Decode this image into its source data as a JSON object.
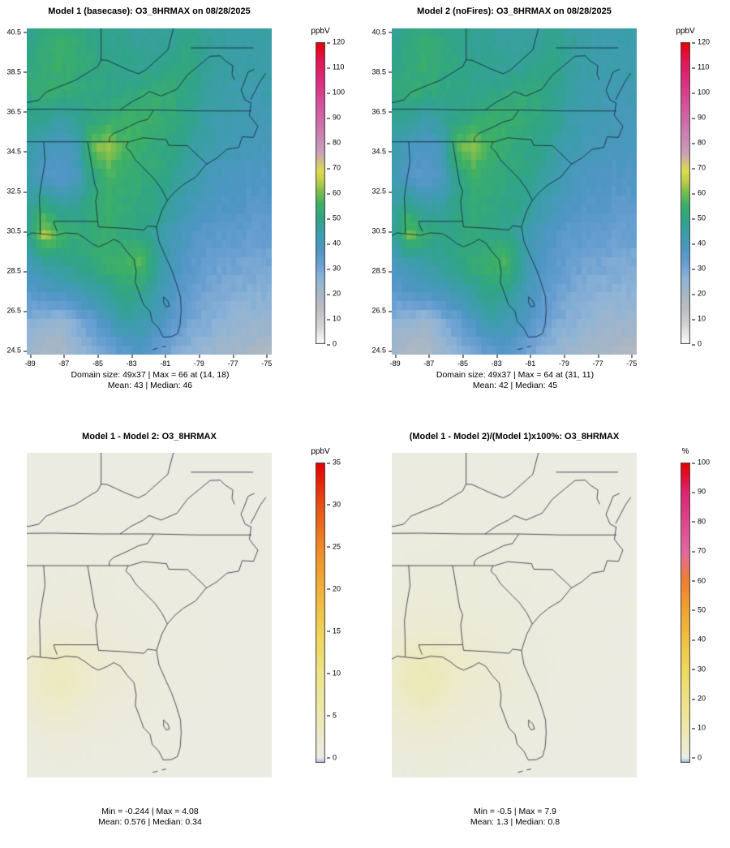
{
  "axes": {
    "x_ticks": [
      -89,
      -87,
      -85,
      -83,
      -81,
      -79,
      -77,
      -75
    ],
    "y_ticks": [
      40.5,
      38.5,
      36.5,
      34.5,
      32.5,
      30.5,
      28.5,
      26.5,
      24.5
    ]
  },
  "chart_data": [
    {
      "type": "heatmap",
      "title": "Model 1 (basecase): O3_8HRMAX on 08/28/2025",
      "units": "ppbV",
      "show_axes": true,
      "x_range": [
        -89.2,
        -74.7
      ],
      "y_range": [
        24.3,
        40.7
      ],
      "grid_cols": 49,
      "grid_rows": 37,
      "colorbar": {
        "label": "ppbV",
        "bar_range": [
          0,
          120
        ],
        "ticks": [
          0,
          10,
          20,
          30,
          40,
          50,
          60,
          70,
          80,
          90,
          100,
          110,
          120
        ]
      },
      "color_stops": [
        [
          0,
          "#FDFDFD"
        ],
        [
          8,
          "#D2D2D2"
        ],
        [
          14,
          "#BCBEC2"
        ],
        [
          20,
          "#A9B6C4"
        ],
        [
          26,
          "#8FB4D6"
        ],
        [
          32,
          "#699FD2"
        ],
        [
          38,
          "#4E96C4"
        ],
        [
          44,
          "#3D9DAC"
        ],
        [
          50,
          "#30A487"
        ],
        [
          56,
          "#3FB163"
        ],
        [
          61,
          "#7FBE4F"
        ],
        [
          65,
          "#C1CE48"
        ],
        [
          69,
          "#DCDC4E"
        ],
        [
          76,
          "#C9A2B8"
        ],
        [
          85,
          "#CC7BB0"
        ],
        [
          95,
          "#D3539E"
        ],
        [
          105,
          "#DB2C7E"
        ],
        [
          113,
          "#E01650"
        ],
        [
          120,
          "#E60000"
        ]
      ],
      "values": [
        [
          49,
          51,
          53,
          52,
          50,
          49,
          48,
          47,
          47,
          48,
          50,
          48,
          46,
          45,
          45,
          46
        ],
        [
          51,
          53,
          55,
          53,
          51,
          50,
          49,
          48,
          48,
          50,
          51,
          48,
          46,
          45,
          44,
          45
        ],
        [
          52,
          54,
          53,
          52,
          51,
          50,
          50,
          52,
          53,
          53,
          50,
          47,
          45,
          44,
          43,
          44
        ],
        [
          50,
          48,
          46,
          48,
          51,
          53,
          55,
          56,
          54,
          52,
          49,
          46,
          44,
          43,
          42,
          42
        ],
        [
          45,
          41,
          38,
          42,
          60,
          63,
          56,
          54,
          52,
          50,
          47,
          44,
          42,
          41,
          40,
          40
        ],
        [
          43,
          38,
          36,
          40,
          50,
          56,
          54,
          52,
          51,
          49,
          45,
          42,
          40,
          39,
          38,
          38
        ],
        [
          47,
          52,
          46,
          48,
          52,
          54,
          52,
          51,
          50,
          46,
          42,
          39,
          38,
          37,
          36,
          36
        ],
        [
          50,
          64,
          56,
          52,
          53,
          54,
          52,
          50,
          46,
          42,
          38,
          36,
          35,
          34,
          33,
          33
        ],
        [
          42,
          46,
          48,
          50,
          52,
          55,
          56,
          58,
          48,
          40,
          36,
          33,
          32,
          31,
          30,
          30
        ],
        [
          36,
          38,
          40,
          42,
          45,
          48,
          52,
          50,
          44,
          38,
          34,
          31,
          29,
          28,
          28,
          27
        ],
        [
          28,
          26,
          25,
          29,
          34,
          40,
          46,
          44,
          40,
          35,
          31,
          28,
          26,
          25,
          24,
          24
        ],
        [
          22,
          20,
          20,
          24,
          28,
          32,
          36,
          38,
          34,
          30,
          27,
          24,
          23,
          22,
          21,
          20
        ]
      ],
      "stats": {
        "line1": "Domain size: 49x37 | Max = 66 at (14, 18)",
        "line2": "Mean: 43 | Median: 46"
      }
    },
    {
      "type": "heatmap",
      "title": "Model 2 (noFires): O3_8HRMAX on 08/28/2025",
      "units": "ppbV",
      "show_axes": true,
      "x_range": [
        -89.2,
        -74.7
      ],
      "y_range": [
        24.3,
        40.7
      ],
      "grid_cols": 49,
      "grid_rows": 37,
      "colorbar": {
        "label": "ppbV",
        "bar_range": [
          0,
          120
        ],
        "ticks": [
          0,
          10,
          20,
          30,
          40,
          50,
          60,
          70,
          80,
          90,
          100,
          110,
          120
        ]
      },
      "color_stops": [
        [
          0,
          "#FDFDFD"
        ],
        [
          8,
          "#D2D2D2"
        ],
        [
          14,
          "#BCBEC2"
        ],
        [
          20,
          "#A9B6C4"
        ],
        [
          26,
          "#8FB4D6"
        ],
        [
          32,
          "#699FD2"
        ],
        [
          38,
          "#4E96C4"
        ],
        [
          44,
          "#3D9DAC"
        ],
        [
          50,
          "#30A487"
        ],
        [
          56,
          "#3FB163"
        ],
        [
          61,
          "#7FBE4F"
        ],
        [
          65,
          "#C1CE48"
        ],
        [
          69,
          "#DCDC4E"
        ],
        [
          76,
          "#C9A2B8"
        ],
        [
          85,
          "#CC7BB0"
        ],
        [
          95,
          "#D3539E"
        ],
        [
          105,
          "#DB2C7E"
        ],
        [
          113,
          "#E01650"
        ],
        [
          120,
          "#E60000"
        ]
      ],
      "values": [
        [
          48,
          50,
          52,
          51,
          49,
          48,
          47,
          46,
          46,
          47,
          49,
          47,
          45,
          44,
          44,
          45
        ],
        [
          50,
          52,
          54,
          52,
          50,
          49,
          48,
          47,
          47,
          49,
          50,
          47,
          45,
          44,
          43,
          44
        ],
        [
          51,
          53,
          52,
          51,
          50,
          49,
          49,
          51,
          52,
          52,
          49,
          46,
          44,
          43,
          42,
          43
        ],
        [
          49,
          47,
          45,
          47,
          50,
          52,
          54,
          55,
          53,
          51,
          48,
          45,
          43,
          42,
          41,
          41
        ],
        [
          44,
          40,
          37,
          41,
          59,
          62,
          55,
          53,
          51,
          49,
          46,
          43,
          41,
          40,
          39,
          39
        ],
        [
          42,
          37,
          35,
          39,
          49,
          55,
          53,
          51,
          50,
          48,
          44,
          41,
          39,
          38,
          37,
          37
        ],
        [
          46,
          50,
          44,
          46,
          50,
          52,
          51,
          50,
          49,
          45,
          41,
          38,
          37,
          36,
          35,
          35
        ],
        [
          48,
          60,
          53,
          50,
          51,
          52,
          51,
          49,
          45,
          41,
          37,
          35,
          34,
          33,
          32,
          32
        ],
        [
          40,
          43,
          45,
          47,
          50,
          53,
          55,
          57,
          47,
          39,
          35,
          32,
          31,
          30,
          29,
          29
        ],
        [
          35,
          37,
          39,
          41,
          44,
          47,
          51,
          49,
          43,
          37,
          33,
          30,
          28,
          27,
          27,
          26
        ],
        [
          27,
          25,
          24,
          28,
          33,
          39,
          45,
          43,
          39,
          34,
          30,
          27,
          25,
          24,
          23,
          23
        ],
        [
          21,
          19,
          19,
          23,
          27,
          31,
          35,
          37,
          33,
          29,
          26,
          23,
          22,
          21,
          20,
          19
        ]
      ],
      "stats": {
        "line1": "Domain size: 49x37 | Max = 64 at (31, 11)",
        "line2": "Mean: 42 | Median: 45"
      }
    },
    {
      "type": "heatmap",
      "title": "Model 1 - Model 2: O3_8HRMAX",
      "units": "ppbV",
      "show_axes": false,
      "x_range": [
        -89.2,
        -74.7
      ],
      "y_range": [
        24.3,
        40.7
      ],
      "grid_cols": 49,
      "grid_rows": 37,
      "colorbar": {
        "label": "ppbV",
        "bar_range": [
          -0.6,
          35
        ],
        "ticks": [
          0,
          5,
          10,
          15,
          20,
          25,
          30,
          35
        ]
      },
      "color_stops": [
        [
          -1,
          "#8FAEDC"
        ],
        [
          -0.15,
          "#CBD7EC"
        ],
        [
          0,
          "#EBEBE4"
        ],
        [
          2,
          "#ECEAD4"
        ],
        [
          5,
          "#EDE9B2"
        ],
        [
          10,
          "#EDE388"
        ],
        [
          15,
          "#EFD356"
        ],
        [
          20,
          "#F0B13C"
        ],
        [
          25,
          "#EE8A26"
        ],
        [
          30,
          "#E65014"
        ],
        [
          35,
          "#E60000"
        ]
      ],
      "values": [
        [
          0.3,
          0.3,
          0.3,
          0.3,
          0.3,
          0.3,
          0.3,
          0.3,
          0.2,
          0.2,
          0.2,
          0.2,
          0.2,
          0.2,
          0.2,
          0.2
        ],
        [
          0.3,
          0.3,
          0.4,
          0.4,
          0.4,
          0.3,
          0.3,
          0.3,
          0.3,
          0.3,
          0.2,
          0.2,
          0.2,
          0.2,
          0.2,
          0.2
        ],
        [
          0.4,
          0.4,
          0.5,
          0.5,
          0.5,
          0.4,
          0.4,
          0.4,
          0.3,
          0.3,
          0.3,
          0.3,
          0.2,
          0.2,
          0.2,
          0.2
        ],
        [
          0.5,
          0.5,
          0.6,
          0.6,
          0.6,
          0.6,
          0.5,
          0.5,
          0.4,
          0.4,
          0.3,
          0.3,
          0.3,
          0.3,
          0.2,
          0.2
        ],
        [
          0.6,
          0.7,
          0.8,
          0.8,
          0.8,
          0.8,
          0.7,
          0.6,
          0.5,
          0.5,
          0.4,
          0.4,
          0.3,
          0.3,
          0.3,
          0.3
        ],
        [
          0.8,
          1.0,
          1.1,
          1.1,
          1.0,
          0.9,
          0.8,
          0.7,
          0.6,
          0.5,
          0.5,
          0.4,
          0.4,
          0.3,
          0.3,
          0.3
        ],
        [
          1.2,
          1.6,
          1.8,
          1.7,
          1.5,
          1.2,
          1.0,
          0.9,
          0.7,
          0.6,
          0.5,
          0.5,
          0.4,
          0.4,
          0.3,
          0.3
        ],
        [
          2.2,
          3.2,
          3.6,
          3.1,
          2.5,
          2.0,
          1.6,
          1.1,
          0.8,
          0.7,
          0.6,
          0.5,
          0.4,
          0.4,
          0.3,
          0.3
        ],
        [
          2.6,
          3.6,
          4.0,
          3.3,
          2.3,
          1.9,
          1.6,
          1.3,
          0.9,
          0.7,
          0.5,
          0.4,
          0.4,
          0.3,
          0.3,
          0.3
        ],
        [
          1.6,
          2.2,
          2.6,
          2.1,
          1.6,
          1.3,
          1.1,
          0.9,
          0.7,
          0.5,
          0.4,
          0.4,
          0.3,
          0.3,
          0.2,
          0.2
        ],
        [
          0.9,
          1.1,
          1.3,
          1.1,
          0.9,
          0.8,
          0.7,
          0.6,
          0.5,
          0.4,
          0.3,
          0.3,
          0.2,
          0.2,
          0.2,
          0.2
        ],
        [
          0.5,
          0.6,
          0.7,
          0.6,
          0.5,
          0.5,
          0.4,
          0.4,
          0.3,
          0.3,
          0.2,
          0.2,
          0.2,
          0.2,
          0.2,
          0.2
        ]
      ],
      "stats": {
        "line1": "Min = -0.244 | Max = 4.08",
        "line2": "Mean: 0.576 |  Median: 0.34"
      }
    },
    {
      "type": "heatmap",
      "title": "(Model 1 - Model 2)/(Model 1)x100%: O3_8HRMAX",
      "units": "%",
      "show_axes": false,
      "x_range": [
        -89.2,
        -74.7
      ],
      "y_range": [
        24.3,
        40.7
      ],
      "grid_cols": 49,
      "grid_rows": 37,
      "colorbar": {
        "label": "%",
        "bar_range": [
          -1.7,
          100
        ],
        "ticks": [
          0,
          10,
          20,
          30,
          40,
          50,
          60,
          70,
          80,
          90,
          100
        ]
      },
      "color_stops": [
        [
          -2,
          "#8FAEDC"
        ],
        [
          -0.3,
          "#CBD7EC"
        ],
        [
          0,
          "#EBEBE4"
        ],
        [
          5,
          "#ECEAC9"
        ],
        [
          10,
          "#EDE8A9"
        ],
        [
          20,
          "#EDE288"
        ],
        [
          30,
          "#EFD85F"
        ],
        [
          40,
          "#F0C243"
        ],
        [
          50,
          "#F0A430"
        ],
        [
          60,
          "#EE8032"
        ],
        [
          70,
          "#E2689E"
        ],
        [
          80,
          "#DC4890"
        ],
        [
          90,
          "#DB246E"
        ],
        [
          100,
          "#E60000"
        ]
      ],
      "values": [
        [
          0.6,
          0.6,
          0.6,
          0.6,
          0.6,
          0.6,
          0.6,
          0.6,
          0.4,
          0.4,
          0.4,
          0.4,
          0.4,
          0.4,
          0.4,
          0.4
        ],
        [
          0.6,
          0.6,
          0.8,
          0.8,
          0.8,
          0.6,
          0.6,
          0.6,
          0.6,
          0.6,
          0.4,
          0.4,
          0.4,
          0.4,
          0.4,
          0.4
        ],
        [
          0.8,
          0.8,
          1.0,
          1.0,
          1.0,
          0.8,
          0.8,
          0.8,
          0.6,
          0.6,
          0.6,
          0.6,
          0.4,
          0.4,
          0.4,
          0.4
        ],
        [
          1.0,
          1.0,
          1.2,
          1.2,
          1.2,
          1.2,
          1.0,
          1.0,
          0.8,
          0.8,
          0.6,
          0.6,
          0.6,
          0.6,
          0.4,
          0.4
        ],
        [
          1.2,
          1.4,
          1.6,
          1.6,
          1.6,
          1.6,
          1.4,
          1.2,
          1.0,
          1.0,
          0.8,
          0.8,
          0.6,
          0.6,
          0.6,
          0.6
        ],
        [
          1.6,
          2.0,
          2.2,
          2.2,
          2.0,
          1.8,
          1.6,
          1.4,
          1.2,
          1.0,
          1.0,
          0.8,
          0.8,
          0.6,
          0.6,
          0.6
        ],
        [
          2.4,
          3.2,
          3.6,
          3.4,
          3.0,
          2.4,
          2.0,
          1.8,
          1.4,
          1.2,
          1.0,
          1.0,
          0.8,
          0.8,
          0.6,
          0.6
        ],
        [
          4.4,
          6.4,
          7.2,
          6.2,
          5.0,
          4.0,
          3.2,
          2.2,
          1.6,
          1.4,
          1.2,
          1.0,
          0.8,
          0.8,
          0.6,
          0.6
        ],
        [
          5.2,
          7.2,
          7.9,
          6.6,
          4.6,
          3.8,
          3.2,
          2.6,
          1.8,
          1.4,
          1.0,
          0.8,
          0.8,
          0.6,
          0.6,
          0.6
        ],
        [
          3.2,
          4.4,
          5.2,
          4.2,
          3.2,
          2.6,
          2.2,
          1.8,
          1.4,
          1.0,
          0.8,
          0.8,
          0.6,
          0.6,
          0.4,
          0.4
        ],
        [
          1.8,
          2.2,
          2.6,
          2.2,
          1.8,
          1.6,
          1.4,
          1.2,
          1.0,
          0.8,
          0.6,
          0.6,
          0.4,
          0.4,
          0.4,
          0.4
        ],
        [
          1.0,
          1.2,
          1.4,
          1.2,
          1.0,
          1.0,
          0.8,
          0.8,
          0.6,
          0.6,
          0.4,
          0.4,
          0.4,
          0.4,
          0.4,
          0.4
        ]
      ],
      "stats": {
        "line1": "Min = -0.5 | Max = 7.9",
        "line2": "Mean: 1.3 |  Median: 0.8"
      }
    }
  ]
}
